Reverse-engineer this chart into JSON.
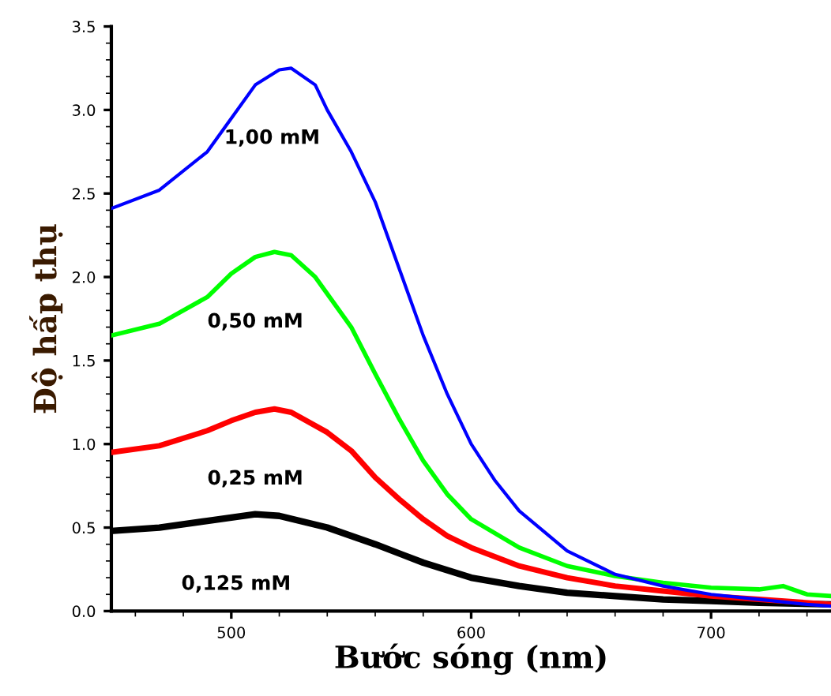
{
  "chart_data": {
    "type": "line",
    "xlabel": "Bước sóng (nm)",
    "ylabel": "Độ hấp thụ",
    "xlim": [
      450,
      750
    ],
    "xticks": [
      500,
      600,
      700
    ],
    "ylim": [
      0,
      3.5
    ],
    "yticks": [
      {
        "value": 0,
        "label": "0.0"
      },
      {
        "value": 0.5,
        "label": "0.5"
      },
      {
        "value": 1,
        "label": "1.0"
      },
      {
        "value": 1.5,
        "label": "1.5"
      },
      {
        "value": 2,
        "label": "2.0"
      },
      {
        "value": 2.5,
        "label": "2.5"
      },
      {
        "value": 3,
        "label": "3.0"
      },
      {
        "value": 3.5,
        "label": "3.5"
      }
    ],
    "grid": false,
    "legend": false,
    "marker": "none",
    "line_style": "solid",
    "series": [
      {
        "name": "1,00 mM",
        "color": "#0000ff",
        "x": [
          450,
          470,
          490,
          500,
          510,
          520,
          525,
          535,
          540,
          550,
          560,
          570,
          580,
          590,
          600,
          610,
          620,
          640,
          660,
          680,
          700,
          720,
          740,
          750
        ],
        "values": [
          2.41,
          2.52,
          2.75,
          2.95,
          3.15,
          3.24,
          3.25,
          3.15,
          3.0,
          2.75,
          2.45,
          2.05,
          1.65,
          1.3,
          1.0,
          0.78,
          0.6,
          0.36,
          0.22,
          0.15,
          0.1,
          0.07,
          0.04,
          0.03
        ]
      },
      {
        "name": "0,50 mM",
        "color": "#00ff00",
        "x": [
          450,
          470,
          490,
          500,
          510,
          518,
          525,
          535,
          550,
          560,
          570,
          580,
          590,
          600,
          620,
          640,
          660,
          680,
          700,
          720,
          730,
          740,
          750
        ],
        "values": [
          1.65,
          1.72,
          1.88,
          2.02,
          2.12,
          2.15,
          2.13,
          2.0,
          1.7,
          1.42,
          1.15,
          0.9,
          0.7,
          0.55,
          0.38,
          0.27,
          0.21,
          0.17,
          0.14,
          0.13,
          0.15,
          0.1,
          0.09
        ]
      },
      {
        "name": "0,25 mM",
        "color": "#ff0000",
        "x": [
          450,
          470,
          490,
          500,
          510,
          518,
          525,
          540,
          550,
          560,
          570,
          580,
          590,
          600,
          620,
          640,
          660,
          680,
          700,
          720,
          750
        ],
        "values": [
          0.95,
          0.99,
          1.08,
          1.14,
          1.19,
          1.21,
          1.19,
          1.07,
          0.96,
          0.8,
          0.67,
          0.55,
          0.45,
          0.38,
          0.27,
          0.2,
          0.15,
          0.12,
          0.09,
          0.07,
          0.04
        ]
      },
      {
        "name": "0,125 mM",
        "color": "#000000",
        "x": [
          450,
          470,
          490,
          510,
          520,
          540,
          560,
          580,
          600,
          620,
          640,
          660,
          680,
          700,
          720,
          750
        ],
        "values": [
          0.48,
          0.5,
          0.54,
          0.58,
          0.57,
          0.5,
          0.4,
          0.29,
          0.2,
          0.15,
          0.11,
          0.09,
          0.07,
          0.06,
          0.05,
          0.04
        ]
      }
    ]
  }
}
